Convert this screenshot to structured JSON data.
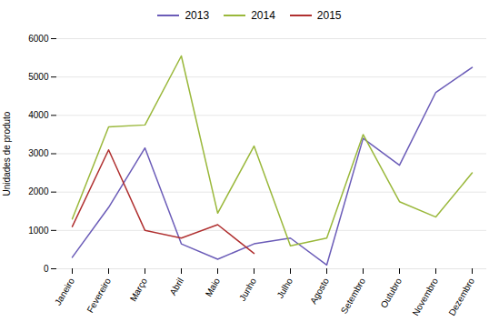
{
  "chart_data": {
    "type": "line",
    "categories": [
      "Janeiro",
      "Fevereiro",
      "Março",
      "Abril",
      "Maio",
      "Junho",
      "Julho",
      "Agosto",
      "Setembro",
      "Outubro",
      "Novembro",
      "Dezembro"
    ],
    "series": [
      {
        "name": "2013",
        "color": "#6b5cb8",
        "values": [
          300,
          1600,
          3150,
          650,
          250,
          650,
          800,
          100,
          3400,
          2700,
          4600,
          5250
        ]
      },
      {
        "name": "2014",
        "color": "#9ab83b",
        "values": [
          1300,
          3700,
          3750,
          5550,
          1450,
          3200,
          600,
          800,
          3500,
          1750,
          1350,
          2500
        ]
      },
      {
        "name": "2015",
        "color": "#b03030",
        "values": [
          1100,
          3100,
          1000,
          800,
          1150,
          400,
          null,
          null,
          null,
          null,
          null,
          null
        ]
      }
    ],
    "ylabel": "Unidades de produto",
    "ylim": [
      0,
      6000
    ],
    "yticks": [
      0,
      1000,
      2000,
      3000,
      4000,
      5000,
      6000
    ],
    "grid": true,
    "legend": "top"
  }
}
